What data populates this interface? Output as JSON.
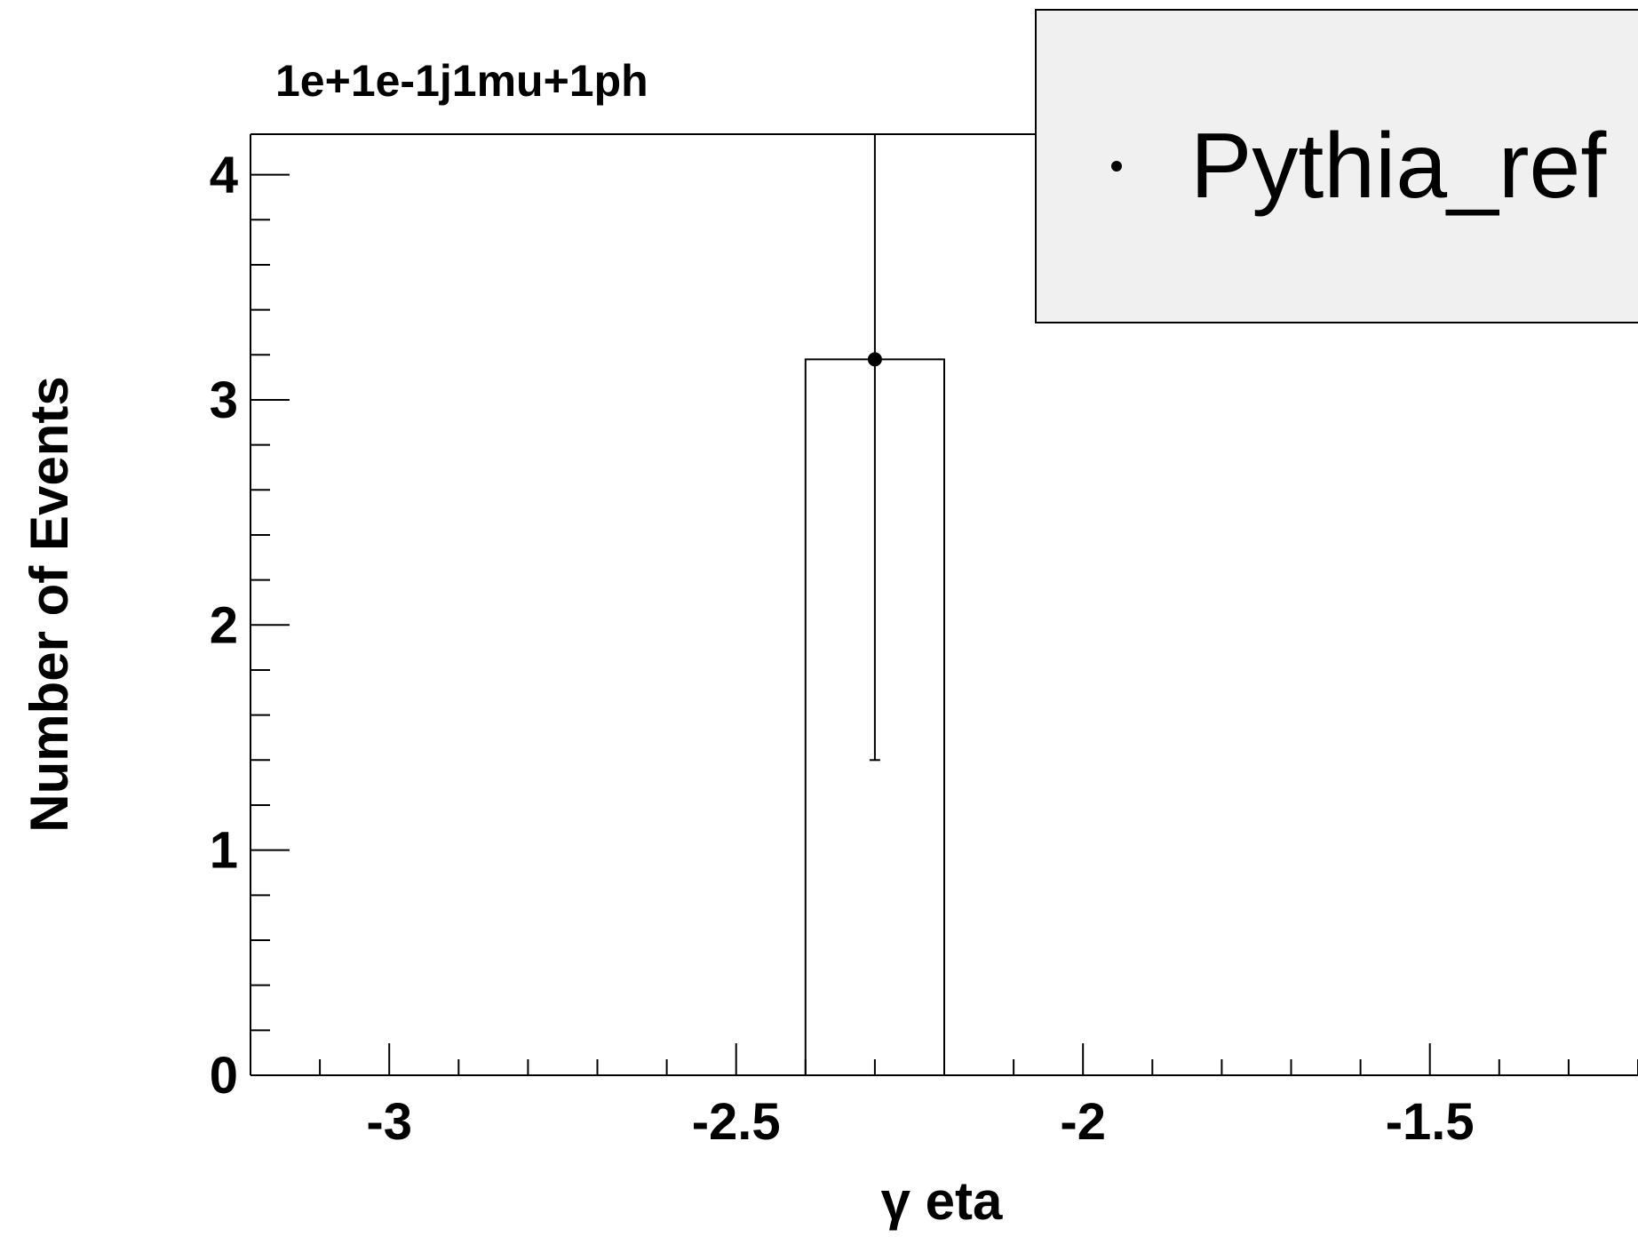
{
  "chart_data": {
    "type": "bar",
    "title": "1e+1e-1j1mu+1ph",
    "xlabel": "γ eta",
    "ylabel": "Number of Events",
    "xlim": [
      -3.2,
      -1.2
    ],
    "ylim": [
      0,
      4.18
    ],
    "xticks": [
      "-3",
      "-2.5",
      "-2",
      "-1.5"
    ],
    "xtick_values": [
      -3,
      -2.5,
      -2,
      -1.5
    ],
    "yticks": [
      "0",
      "1",
      "2",
      "3",
      "4"
    ],
    "ytick_values": [
      0,
      1,
      2,
      3,
      4
    ],
    "bins": [
      {
        "x_low": -2.4,
        "x_high": -2.2,
        "value": 3.18
      }
    ],
    "points": [
      {
        "x": -2.3,
        "y": 3.18,
        "err_low": 1.4,
        "err_high": 4.18
      }
    ],
    "legend": {
      "position": "top-right",
      "entries": [
        {
          "label": "Pythia_ref",
          "marker": "dot"
        }
      ]
    },
    "grid": false,
    "colors": {
      "line": "#000000",
      "legend_bg": "#f0f0f0",
      "background": "#ffffff"
    }
  }
}
